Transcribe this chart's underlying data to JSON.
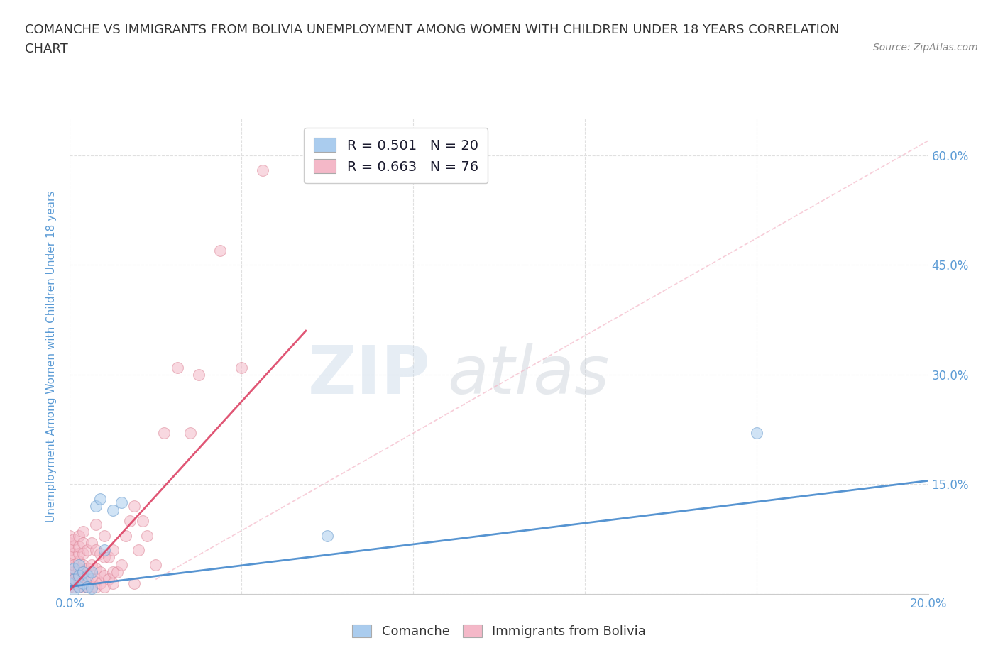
{
  "title_line1": "COMANCHE VS IMMIGRANTS FROM BOLIVIA UNEMPLOYMENT AMONG WOMEN WITH CHILDREN UNDER 18 YEARS CORRELATION",
  "title_line2": "CHART",
  "source_text": "Source: ZipAtlas.com",
  "ylabel": "Unemployment Among Women with Children Under 18 years",
  "xlim": [
    0.0,
    0.2
  ],
  "ylim": [
    0.0,
    0.65
  ],
  "xticks": [
    0.0,
    0.04,
    0.08,
    0.12,
    0.16,
    0.2
  ],
  "yticks": [
    0.0,
    0.15,
    0.3,
    0.45,
    0.6
  ],
  "xticklabels": [
    "0.0%",
    "",
    "",
    "",
    "",
    "20.0%"
  ],
  "yticklabels_right": [
    "",
    "15.0%",
    "30.0%",
    "45.0%",
    "60.0%"
  ],
  "title_color": "#333333",
  "title_fontsize": 13,
  "source_fontsize": 10,
  "axis_label_color": "#5b9bd5",
  "tick_color": "#5b9bd5",
  "grid_color": "#e0e0e0",
  "grid_style": "--",
  "watermark_text_zip": "ZIP",
  "watermark_text_atlas": "atlas",
  "watermark_color_zip": "#c8d8e8",
  "watermark_color_atlas": "#c8d0d8",
  "watermark_alpha": 0.45,
  "legend_R1": "R = 0.501",
  "legend_N1": "N = 20",
  "legend_R2": "R = 0.663",
  "legend_N2": "N = 76",
  "legend_color1": "#aaccee",
  "legend_color2": "#f4b8c8",
  "series1_color": "#aaccee",
  "series2_color": "#f4b8c8",
  "series1_edge": "#6699cc",
  "series2_edge": "#dd8899",
  "trendline1_color": "#4488cc",
  "trendline2_color": "#dd4466",
  "refline_color": "#f4b8c8",
  "comanche_x": [
    0.0,
    0.001,
    0.001,
    0.001,
    0.002,
    0.002,
    0.002,
    0.003,
    0.003,
    0.004,
    0.004,
    0.005,
    0.005,
    0.006,
    0.007,
    0.008,
    0.01,
    0.012,
    0.06,
    0.16
  ],
  "comanche_y": [
    0.015,
    0.005,
    0.02,
    0.035,
    0.01,
    0.025,
    0.04,
    0.015,
    0.03,
    0.01,
    0.025,
    0.008,
    0.03,
    0.12,
    0.13,
    0.06,
    0.115,
    0.125,
    0.08,
    0.22
  ],
  "bolivia_x": [
    0.0,
    0.0,
    0.0,
    0.0,
    0.0,
    0.0,
    0.0,
    0.0,
    0.0,
    0.0,
    0.001,
    0.001,
    0.001,
    0.001,
    0.001,
    0.001,
    0.001,
    0.001,
    0.002,
    0.002,
    0.002,
    0.002,
    0.002,
    0.002,
    0.002,
    0.002,
    0.002,
    0.003,
    0.003,
    0.003,
    0.003,
    0.003,
    0.003,
    0.003,
    0.004,
    0.004,
    0.004,
    0.004,
    0.005,
    0.005,
    0.005,
    0.005,
    0.006,
    0.006,
    0.006,
    0.006,
    0.006,
    0.007,
    0.007,
    0.007,
    0.008,
    0.008,
    0.008,
    0.008,
    0.009,
    0.009,
    0.01,
    0.01,
    0.01,
    0.011,
    0.012,
    0.013,
    0.014,
    0.015,
    0.015,
    0.016,
    0.017,
    0.018,
    0.02,
    0.022,
    0.025,
    0.028,
    0.03,
    0.035,
    0.04,
    0.045
  ],
  "bolivia_y": [
    0.01,
    0.015,
    0.02,
    0.025,
    0.03,
    0.04,
    0.05,
    0.06,
    0.07,
    0.08,
    0.01,
    0.015,
    0.02,
    0.03,
    0.04,
    0.055,
    0.065,
    0.075,
    0.01,
    0.015,
    0.02,
    0.025,
    0.035,
    0.045,
    0.055,
    0.065,
    0.08,
    0.01,
    0.02,
    0.03,
    0.04,
    0.055,
    0.07,
    0.085,
    0.01,
    0.02,
    0.035,
    0.06,
    0.01,
    0.02,
    0.04,
    0.07,
    0.01,
    0.02,
    0.035,
    0.06,
    0.095,
    0.015,
    0.03,
    0.055,
    0.01,
    0.025,
    0.05,
    0.08,
    0.02,
    0.05,
    0.015,
    0.03,
    0.06,
    0.03,
    0.04,
    0.08,
    0.1,
    0.015,
    0.12,
    0.06,
    0.1,
    0.08,
    0.04,
    0.22,
    0.31,
    0.22,
    0.3,
    0.47,
    0.31,
    0.58
  ],
  "comanche_trend_x": [
    0.0,
    0.2
  ],
  "comanche_trend_y": [
    0.01,
    0.155
  ],
  "bolivia_trend_x": [
    0.0,
    0.055
  ],
  "bolivia_trend_y": [
    0.005,
    0.36
  ],
  "refline_x": [
    0.02,
    0.2
  ],
  "refline_y": [
    0.02,
    0.62
  ],
  "marker_size": 130,
  "marker_alpha": 0.55,
  "background_color": "#ffffff",
  "figsize": [
    14.06,
    9.3
  ],
  "dpi": 100
}
